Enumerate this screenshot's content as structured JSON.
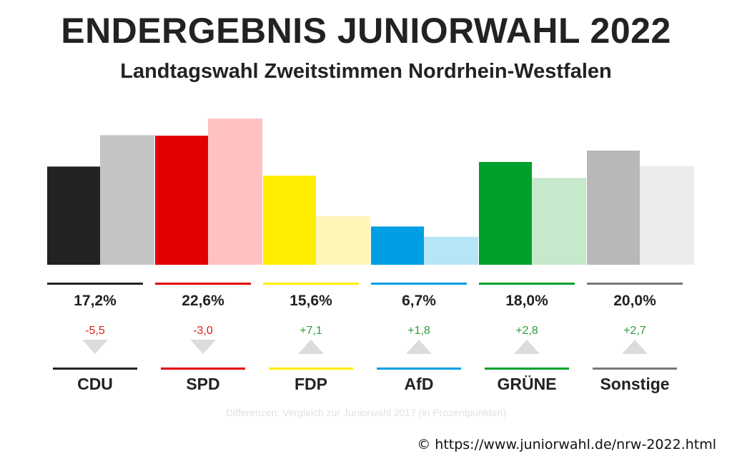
{
  "title": "ENDERGEBNIS JUNIORWAHL 2022",
  "subtitle": "Landtagswahl Zweitstimmen Nordrhein-Westfalen",
  "note": "Differenzen: Vergleich zur Juniorwahl 2017 (in Prozentpunkten)",
  "source": "© https://www.juniorwahl.de/nrw-2022.html",
  "chart_data": {
    "type": "bar",
    "title": "ENDERGEBNIS JUNIORWAHL 2022",
    "subtitle": "Landtagswahl Zweitstimmen Nordrhein-Westfalen",
    "categories": [
      "CDU",
      "SPD",
      "FDP",
      "AfD",
      "GRÜNE",
      "Sonstige"
    ],
    "series": [
      {
        "values": [
          17.2,
          22.6,
          15.6,
          6.7,
          18.0,
          20.0
        ]
      },
      {
        "values": [
          22.7,
          25.6,
          8.5,
          4.9,
          15.2,
          17.3
        ]
      }
    ],
    "value_labels": [
      "17,2%",
      "22,6%",
      "15,6%",
      "6,7%",
      "18,0%",
      "20,0%"
    ],
    "differences": [
      -5.5,
      -3.0,
      7.1,
      1.8,
      2.8,
      2.7
    ],
    "difference_labels": [
      "-5,5",
      "-3,0",
      "+7,1",
      "+1,8",
      "+2,8",
      "+2,7"
    ],
    "colors": [
      "#222222",
      "#e30000",
      "#ffed00",
      "#009ee3",
      "#00a02c",
      "#b8b8b8"
    ],
    "light_colors": [
      "#c4c4c4",
      "#ffc1c1",
      "#fff6b8",
      "#b5e6f7",
      "#c6e8cb",
      "#ececec"
    ],
    "line_colors": [
      "#222222",
      "#e30000",
      "#ffed00",
      "#009ee3",
      "#00a02c",
      "#777777"
    ],
    "positive_color": "#2e9e3e",
    "negative_color": "#d42020",
    "grid": false,
    "legend": "none"
  }
}
